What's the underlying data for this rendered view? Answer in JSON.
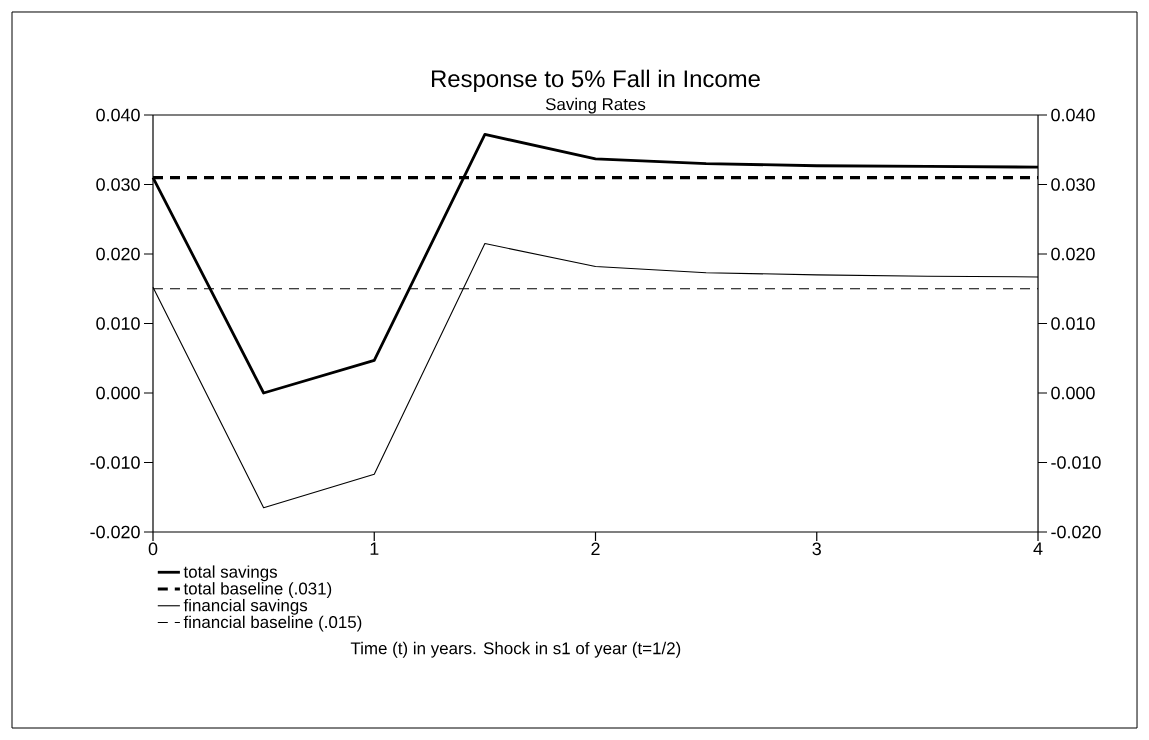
{
  "chart_data": {
    "type": "line",
    "title": "Response to 5% Fall in Income",
    "subtitle": "Saving Rates",
    "annotations": [
      "Time (t) in years. Shock in s1 of year (t=1/2)"
    ],
    "x": [
      0,
      0.5,
      1,
      1.5,
      2,
      2.5,
      3,
      3.5,
      4
    ],
    "series": [
      {
        "name": "total savings",
        "color": "#000000",
        "line_style": "solid",
        "values": [
          0.031,
          0.0,
          0.0047,
          0.0372,
          0.0337,
          0.033,
          0.0327,
          0.0326,
          0.0325
        ]
      },
      {
        "name": "total baseline (.031)",
        "color": "#000000",
        "line_style": "dashed",
        "values": [
          0.031,
          0.031,
          0.031,
          0.031,
          0.031,
          0.031,
          0.031,
          0.031,
          0.031
        ]
      },
      {
        "name": "financial savings",
        "color": "#000000",
        "line_style": "solid",
        "values": [
          0.0152,
          -0.0165,
          -0.0117,
          0.0215,
          0.0182,
          0.0173,
          0.017,
          0.0168,
          0.0167
        ]
      },
      {
        "name": "financial baseline (.015)",
        "color": "#000000",
        "line_style": "dashed",
        "values": [
          0.015,
          0.015,
          0.015,
          0.015,
          0.015,
          0.015,
          0.015,
          0.015,
          0.015
        ]
      }
    ],
    "xlim": [
      0,
      4
    ],
    "xticks": [
      0,
      1,
      2,
      3,
      4
    ],
    "ylim": [
      -0.02,
      0.04
    ],
    "yticks": [
      {
        "value": -0.02,
        "label": "-0.020"
      },
      {
        "value": -0.01,
        "label": "-0.010"
      },
      {
        "value": 0,
        "label": "0.000"
      },
      {
        "value": 0.01,
        "label": "0.010"
      },
      {
        "value": 0.02,
        "label": "0.020"
      },
      {
        "value": 0.03,
        "label": "0.030"
      },
      {
        "value": 0.04,
        "label": "0.040"
      }
    ],
    "y2lim": [
      -0.02,
      0.04
    ],
    "y2ticks": [
      {
        "value": -0.02,
        "label": "-0.020"
      },
      {
        "value": -0.01,
        "label": "-0.010"
      },
      {
        "value": 0,
        "label": "0.000"
      },
      {
        "value": 0.01,
        "label": "0.010"
      },
      {
        "value": 0.02,
        "label": "0.020"
      },
      {
        "value": 0.03,
        "label": "0.030"
      },
      {
        "value": 0.04,
        "label": "0.040"
      }
    ],
    "grid": false,
    "legend": "bottom left",
    "marker": "none"
  }
}
